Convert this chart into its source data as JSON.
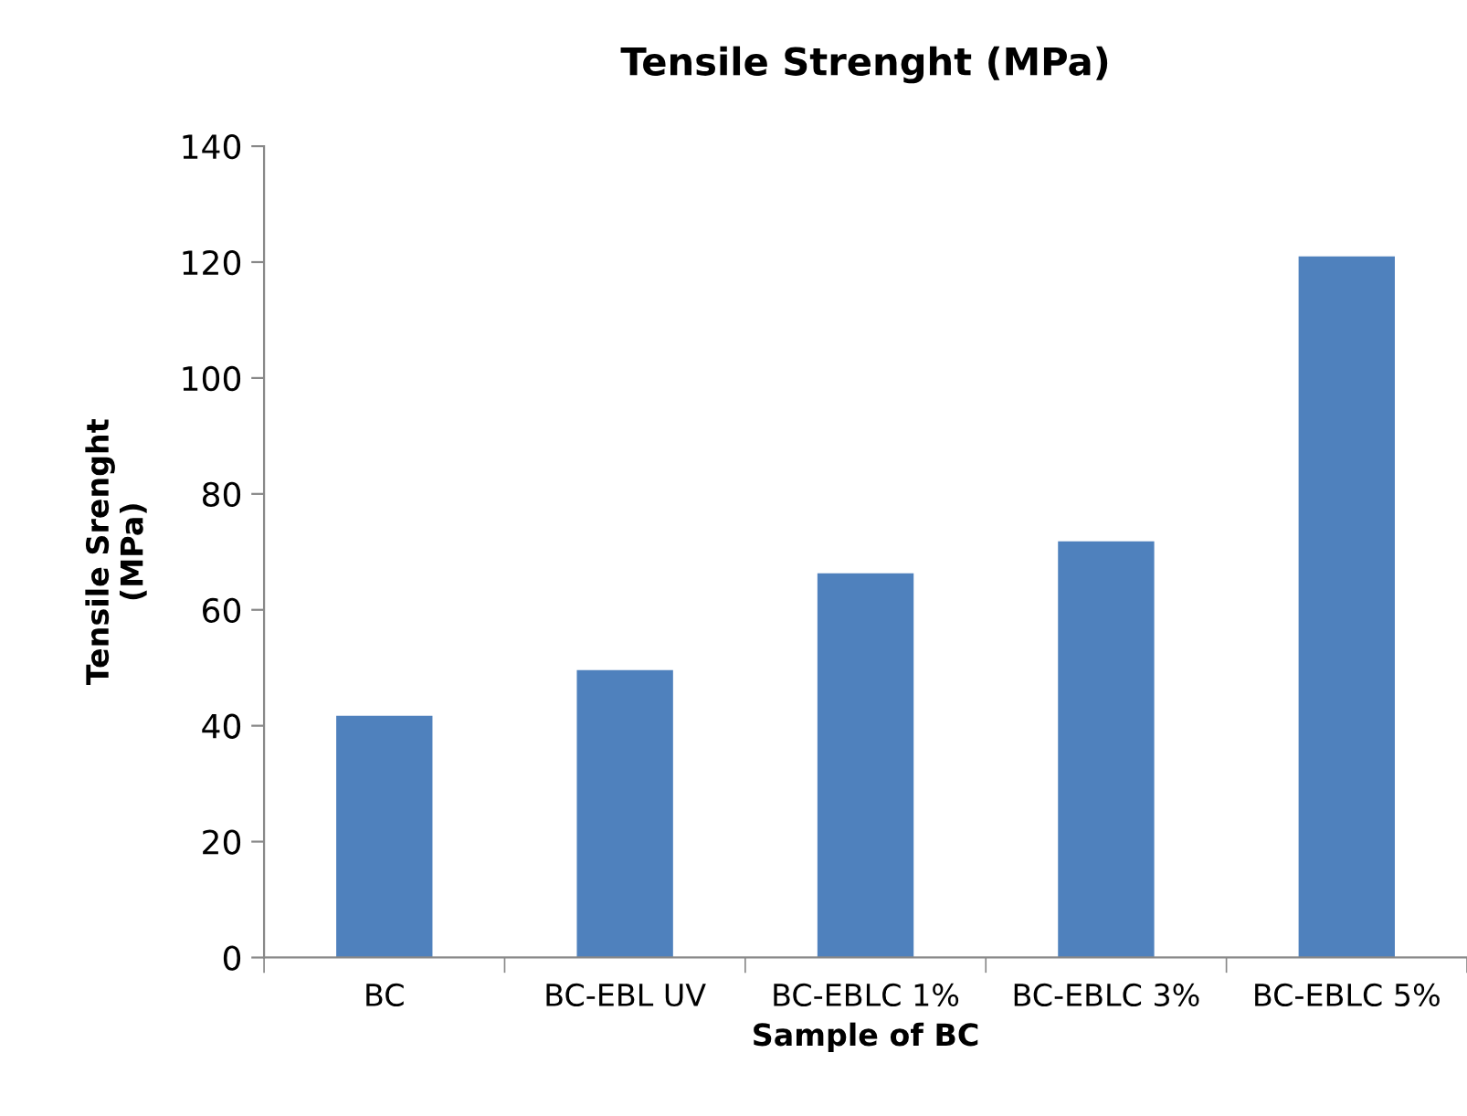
{
  "chart_data": {
    "type": "bar",
    "title": "Tensile Strenght (MPa)",
    "xlabel": "Sample of BC",
    "ylabel": "Tensile Srenght\n(MPa)",
    "categories": [
      "BC",
      "BC-EBL UV",
      "BC-EBLC 1%",
      "BC-EBLC 3%",
      "BC-EBLC 5%"
    ],
    "values": [
      41.7,
      49.6,
      66.3,
      71.8,
      121.0
    ],
    "color": "#4f81bd",
    "ylim": [
      0,
      140
    ],
    "yticks": [
      0,
      20,
      40,
      60,
      80,
      100,
      120,
      140
    ],
    "grid": false,
    "legend": false
  }
}
